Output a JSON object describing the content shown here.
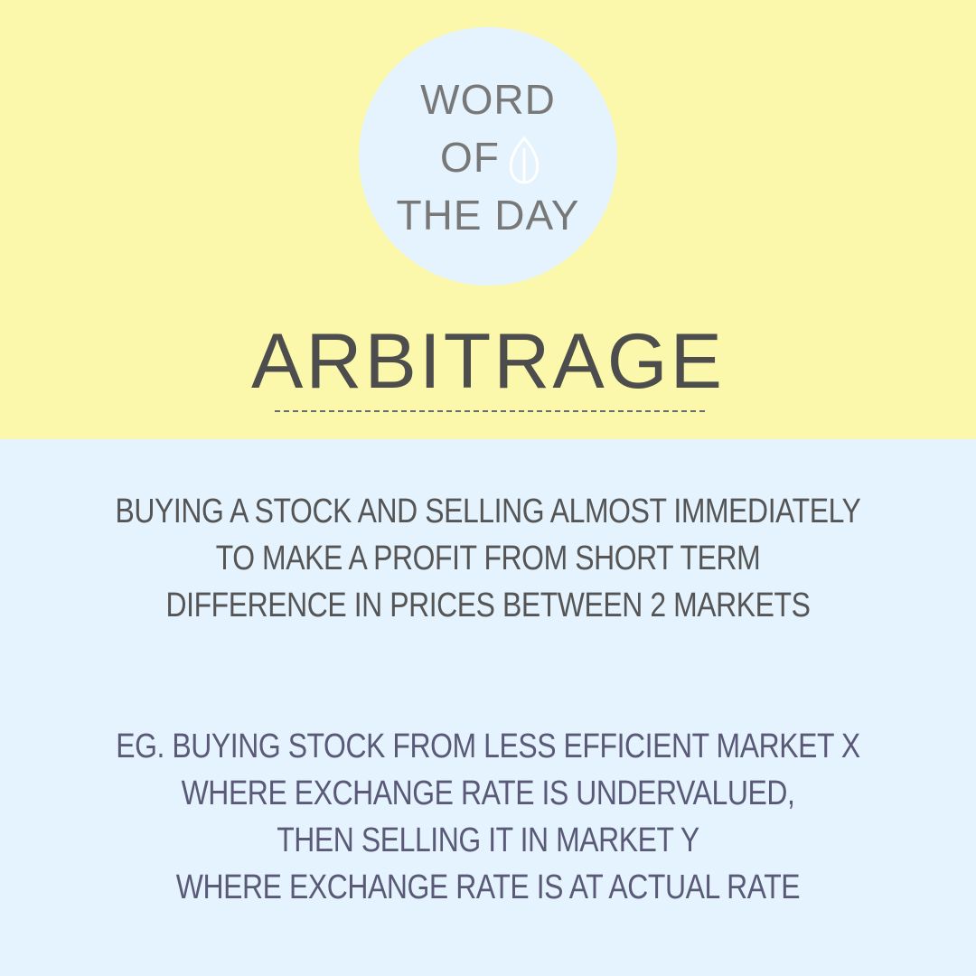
{
  "badge": {
    "line1": "WORD",
    "line2": "OF",
    "line3": "THE DAY",
    "icon": "leaf-icon"
  },
  "word": "ARBITRAGE",
  "definition": [
    "BUYING A STOCK AND SELLING ALMOST IMMEDIATELY",
    "TO MAKE A PROFIT FROM SHORT TERM",
    "DIFFERENCE IN PRICES BETWEEN 2 MARKETS"
  ],
  "example": [
    "EG. BUYING STOCK FROM LESS EFFICIENT MARKET X",
    "WHERE EXCHANGE RATE IS UNDERVALUED,",
    "THEN SELLING IT IN MARKET Y",
    "WHERE EXCHANGE RATE IS AT ACTUAL RATE"
  ],
  "colors": {
    "top_background": "#fbf7ab",
    "bottom_background": "#e4f3fd",
    "badge_text": "#787878",
    "word_text": "#4d4d4d",
    "example_text": "#5a5a78"
  }
}
